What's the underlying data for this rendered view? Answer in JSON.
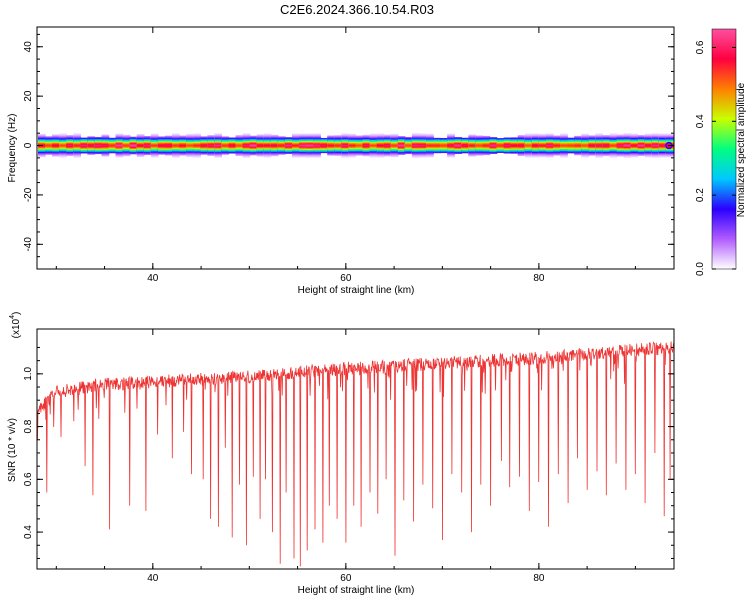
{
  "title": "C2E6.2024.366.10.54.R03",
  "chart_data": [
    {
      "type": "heatmap",
      "xlabel": "Height of straight line (km)",
      "ylabel": "Frequency (Hz)",
      "xlim": [
        28,
        94
      ],
      "ylim": [
        -50,
        48
      ],
      "xticks": [
        "40",
        "60",
        "80"
      ],
      "xtick_values": [
        40,
        60,
        80
      ],
      "yticks": [
        "-40",
        "-20",
        "0",
        "20",
        "40"
      ],
      "ytick_values": [
        -40,
        -20,
        0,
        20,
        40
      ],
      "band": {
        "center_hz": 0,
        "core_halfwidth_hz": 2,
        "outer_halfwidth_hz": 5,
        "max_amplitude": 0.65
      },
      "colorbar": {
        "label": "Normalized spectral amplitude",
        "range": [
          0.0,
          0.65
        ],
        "ticks": [
          "0.0",
          "0.2",
          "0.4",
          "0.6"
        ],
        "tick_values": [
          0.0,
          0.2,
          0.4,
          0.6
        ],
        "colors": [
          "#ffffff",
          "#b05cff",
          "#2a00ff",
          "#00c8ff",
          "#00ff80",
          "#c8ff00",
          "#ff8000",
          "#ff0040",
          "#ff4fa0"
        ]
      },
      "grid": false
    },
    {
      "type": "line",
      "xlabel": "Height of straight line (km)",
      "ylabel": "SNR (10 * v/v)",
      "ymultiplier_label": "(x10",
      "ymultiplier_exp": "4",
      "xlim": [
        28,
        94
      ],
      "ylim": [
        0.26,
        1.17
      ],
      "xticks": [
        "40",
        "60",
        "80"
      ],
      "xtick_values": [
        40,
        60,
        80
      ],
      "yticks": [
        "0.4",
        "0.6",
        "0.8",
        "1.0"
      ],
      "ytick_values": [
        0.4,
        0.6,
        0.8,
        1.0
      ],
      "line_color": "#ee3333",
      "baseline": {
        "x": [
          28,
          30,
          35,
          40,
          50,
          60,
          70,
          80,
          90,
          94
        ],
        "y": [
          0.86,
          0.93,
          0.96,
          0.97,
          0.99,
          1.02,
          1.04,
          1.06,
          1.09,
          1.1
        ]
      },
      "dips": [
        {
          "x": 29.0,
          "y": 0.55
        },
        {
          "x": 30.5,
          "y": 0.76
        },
        {
          "x": 31.8,
          "y": 0.82
        },
        {
          "x": 33.0,
          "y": 0.65
        },
        {
          "x": 33.8,
          "y": 0.54
        },
        {
          "x": 35.5,
          "y": 0.41
        },
        {
          "x": 37.6,
          "y": 0.5
        },
        {
          "x": 39.3,
          "y": 0.48
        },
        {
          "x": 40.5,
          "y": 0.77
        },
        {
          "x": 42.0,
          "y": 0.68
        },
        {
          "x": 43.2,
          "y": 0.78
        },
        {
          "x": 44.0,
          "y": 0.62
        },
        {
          "x": 45.2,
          "y": 0.6
        },
        {
          "x": 46.0,
          "y": 0.45
        },
        {
          "x": 46.8,
          "y": 0.42
        },
        {
          "x": 47.5,
          "y": 0.72
        },
        {
          "x": 48.2,
          "y": 0.38
        },
        {
          "x": 49.0,
          "y": 0.58
        },
        {
          "x": 49.7,
          "y": 0.35
        },
        {
          "x": 50.4,
          "y": 0.61
        },
        {
          "x": 51.1,
          "y": 0.45
        },
        {
          "x": 51.7,
          "y": 0.6
        },
        {
          "x": 52.4,
          "y": 0.4
        },
        {
          "x": 53.2,
          "y": 0.28
        },
        {
          "x": 53.8,
          "y": 0.55
        },
        {
          "x": 54.6,
          "y": 0.3
        },
        {
          "x": 55.3,
          "y": 0.27
        },
        {
          "x": 56.0,
          "y": 0.33
        },
        {
          "x": 56.8,
          "y": 0.41
        },
        {
          "x": 57.6,
          "y": 0.36
        },
        {
          "x": 58.3,
          "y": 0.5
        },
        {
          "x": 59.1,
          "y": 0.45
        },
        {
          "x": 60.0,
          "y": 0.36
        },
        {
          "x": 60.8,
          "y": 0.5
        },
        {
          "x": 61.6,
          "y": 0.42
        },
        {
          "x": 62.5,
          "y": 0.55
        },
        {
          "x": 63.3,
          "y": 0.47
        },
        {
          "x": 64.2,
          "y": 0.6
        },
        {
          "x": 65.1,
          "y": 0.31
        },
        {
          "x": 66.0,
          "y": 0.52
        },
        {
          "x": 67.0,
          "y": 0.44
        },
        {
          "x": 68.0,
          "y": 0.58
        },
        {
          "x": 69.0,
          "y": 0.49
        },
        {
          "x": 70.0,
          "y": 0.37
        },
        {
          "x": 71.0,
          "y": 0.62
        },
        {
          "x": 72.0,
          "y": 0.55
        },
        {
          "x": 73.0,
          "y": 0.4
        },
        {
          "x": 74.0,
          "y": 0.58
        },
        {
          "x": 75.0,
          "y": 0.5
        },
        {
          "x": 76.1,
          "y": 0.67
        },
        {
          "x": 77.0,
          "y": 0.57
        },
        {
          "x": 78.0,
          "y": 0.61
        },
        {
          "x": 79.0,
          "y": 0.48
        },
        {
          "x": 80.0,
          "y": 0.59
        },
        {
          "x": 81.0,
          "y": 0.42
        },
        {
          "x": 82.0,
          "y": 0.62
        },
        {
          "x": 83.0,
          "y": 0.51
        },
        {
          "x": 84.0,
          "y": 0.68
        },
        {
          "x": 85.0,
          "y": 0.56
        },
        {
          "x": 86.0,
          "y": 0.63
        },
        {
          "x": 87.0,
          "y": 0.54
        },
        {
          "x": 88.0,
          "y": 0.66
        },
        {
          "x": 89.0,
          "y": 0.56
        },
        {
          "x": 90.0,
          "y": 0.62
        },
        {
          "x": 91.0,
          "y": 0.51
        },
        {
          "x": 92.0,
          "y": 0.7
        },
        {
          "x": 93.0,
          "y": 0.46
        },
        {
          "x": 93.6,
          "y": 0.6
        }
      ],
      "grid": false
    }
  ]
}
